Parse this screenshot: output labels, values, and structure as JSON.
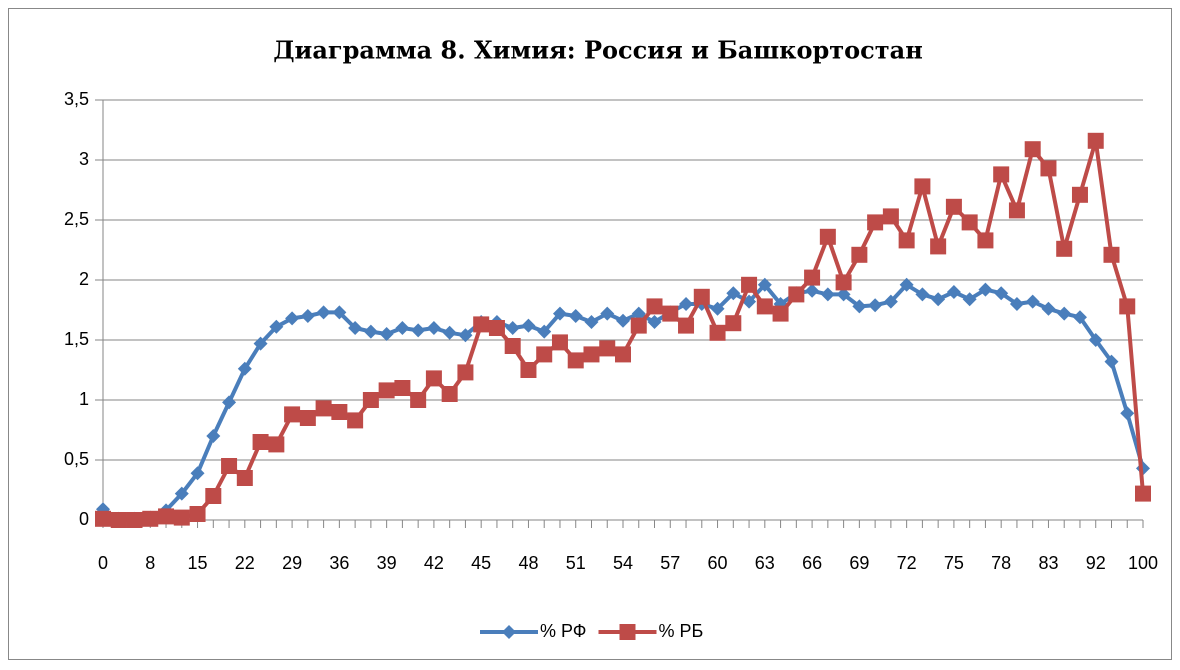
{
  "chart_data": {
    "type": "line",
    "title": "Диаграмма 8. Химия: Россия и Башкортостан",
    "categories": [
      "0",
      null,
      null,
      "8",
      null,
      null,
      "15",
      null,
      null,
      "22",
      null,
      null,
      "29",
      null,
      null,
      "36",
      null,
      null,
      "39",
      null,
      null,
      "42",
      null,
      null,
      "45",
      null,
      null,
      "48",
      null,
      null,
      "51",
      null,
      null,
      "54",
      null,
      null,
      "57",
      null,
      null,
      "60",
      null,
      null,
      "63",
      null,
      null,
      "66",
      null,
      null,
      "69",
      null,
      null,
      "72",
      null,
      null,
      "75",
      null,
      null,
      "78",
      null,
      null,
      "83",
      null,
      null,
      "92",
      null,
      null,
      "100"
    ],
    "series": [
      {
        "name": "% РФ",
        "color": "#4a7ebb",
        "values": [
          0.09,
          0.01,
          0.01,
          0.02,
          0.08,
          0.22,
          0.39,
          0.7,
          0.98,
          1.26,
          1.47,
          1.61,
          1.68,
          1.7,
          1.73,
          1.73,
          1.6,
          1.57,
          1.55,
          1.6,
          1.58,
          1.6,
          1.56,
          1.54,
          1.65,
          1.65,
          1.6,
          1.62,
          1.57,
          1.72,
          1.7,
          1.65,
          1.72,
          1.66,
          1.72,
          1.65,
          1.73,
          1.8,
          1.8,
          1.76,
          1.89,
          1.82,
          1.96,
          1.8,
          1.89,
          1.91,
          1.88,
          1.88,
          1.78,
          1.79,
          1.82,
          1.96,
          1.88,
          1.84,
          1.9,
          1.84,
          1.92,
          1.89,
          1.8,
          1.82,
          1.76,
          1.72,
          1.69,
          1.5,
          1.32,
          0.89,
          0.43
        ]
      },
      {
        "name": "% РБ",
        "color": "#be4b48",
        "values": [
          0.01,
          0,
          0,
          0.01,
          0.03,
          0.02,
          0.05,
          0.2,
          0.45,
          0.35,
          0.65,
          0.63,
          0.88,
          0.85,
          0.93,
          0.9,
          0.83,
          1.0,
          1.08,
          1.1,
          1.0,
          1.18,
          1.05,
          1.23,
          1.63,
          1.6,
          1.45,
          1.25,
          1.38,
          1.48,
          1.33,
          1.38,
          1.43,
          1.38,
          1.62,
          1.78,
          1.72,
          1.62,
          1.86,
          1.56,
          1.64,
          1.96,
          1.78,
          1.72,
          1.88,
          2.02,
          2.36,
          1.98,
          2.21,
          2.48,
          2.53,
          2.33,
          2.78,
          2.28,
          2.61,
          2.48,
          2.33,
          2.88,
          2.58,
          3.09,
          2.93,
          2.26,
          2.71,
          3.16,
          2.21,
          1.78,
          0.22
        ]
      }
    ],
    "ylim": [
      0,
      3.5
    ],
    "yticks": [
      0,
      {
        "value": 0.5,
        "label": "0,5"
      },
      1,
      {
        "value": 1.5,
        "label": "1,5"
      },
      2,
      {
        "value": 2.5,
        "label": "2,5"
      },
      3,
      {
        "value": 3.5,
        "label": "3,5"
      }
    ],
    "grid": true,
    "legend": "bottom"
  }
}
